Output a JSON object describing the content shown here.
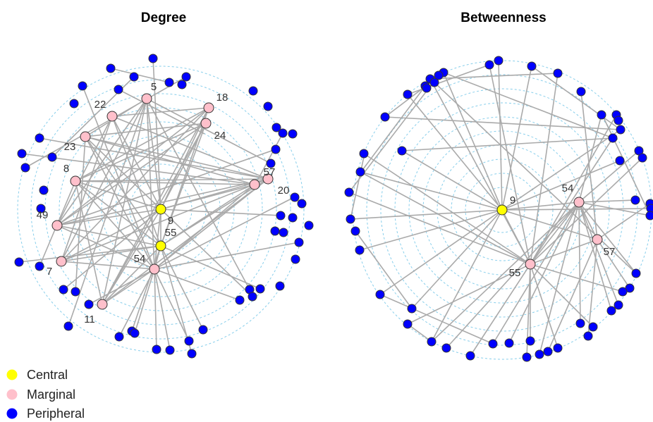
{
  "panels": [
    {
      "title": "Degree",
      "hub_label": "9",
      "labeled_nodes": [
        {
          "label": "5",
          "category": "Marginal"
        },
        {
          "label": "18",
          "category": "Marginal"
        },
        {
          "label": "22",
          "category": "Marginal"
        },
        {
          "label": "24",
          "category": "Marginal"
        },
        {
          "label": "23",
          "category": "Marginal"
        },
        {
          "label": "57",
          "category": "Marginal"
        },
        {
          "label": "20",
          "category": "Marginal"
        },
        {
          "label": "8",
          "category": "Marginal"
        },
        {
          "label": "9",
          "category": "Central"
        },
        {
          "label": "49",
          "category": "Marginal"
        },
        {
          "label": "55",
          "category": "Central"
        },
        {
          "label": "54",
          "category": "Marginal"
        },
        {
          "label": "7",
          "category": "Marginal"
        },
        {
          "label": "11",
          "category": "Marginal"
        }
      ]
    },
    {
      "title": "Betweenness",
      "hub_label": "9",
      "labeled_nodes": [
        {
          "label": "9",
          "category": "Central"
        },
        {
          "label": "54",
          "category": "Marginal"
        },
        {
          "label": "57",
          "category": "Marginal"
        },
        {
          "label": "55",
          "category": "Marginal"
        }
      ]
    }
  ],
  "legend": [
    {
      "label": "Central",
      "color": "#ffff00"
    },
    {
      "label": "Marginal",
      "color": "#ffc0cb"
    },
    {
      "label": "Peripheral",
      "color": "#0000ff"
    }
  ],
  "colors": {
    "edge": "#aaaaaa",
    "ring": "#87ceeb",
    "node_outline": "#333333"
  }
}
